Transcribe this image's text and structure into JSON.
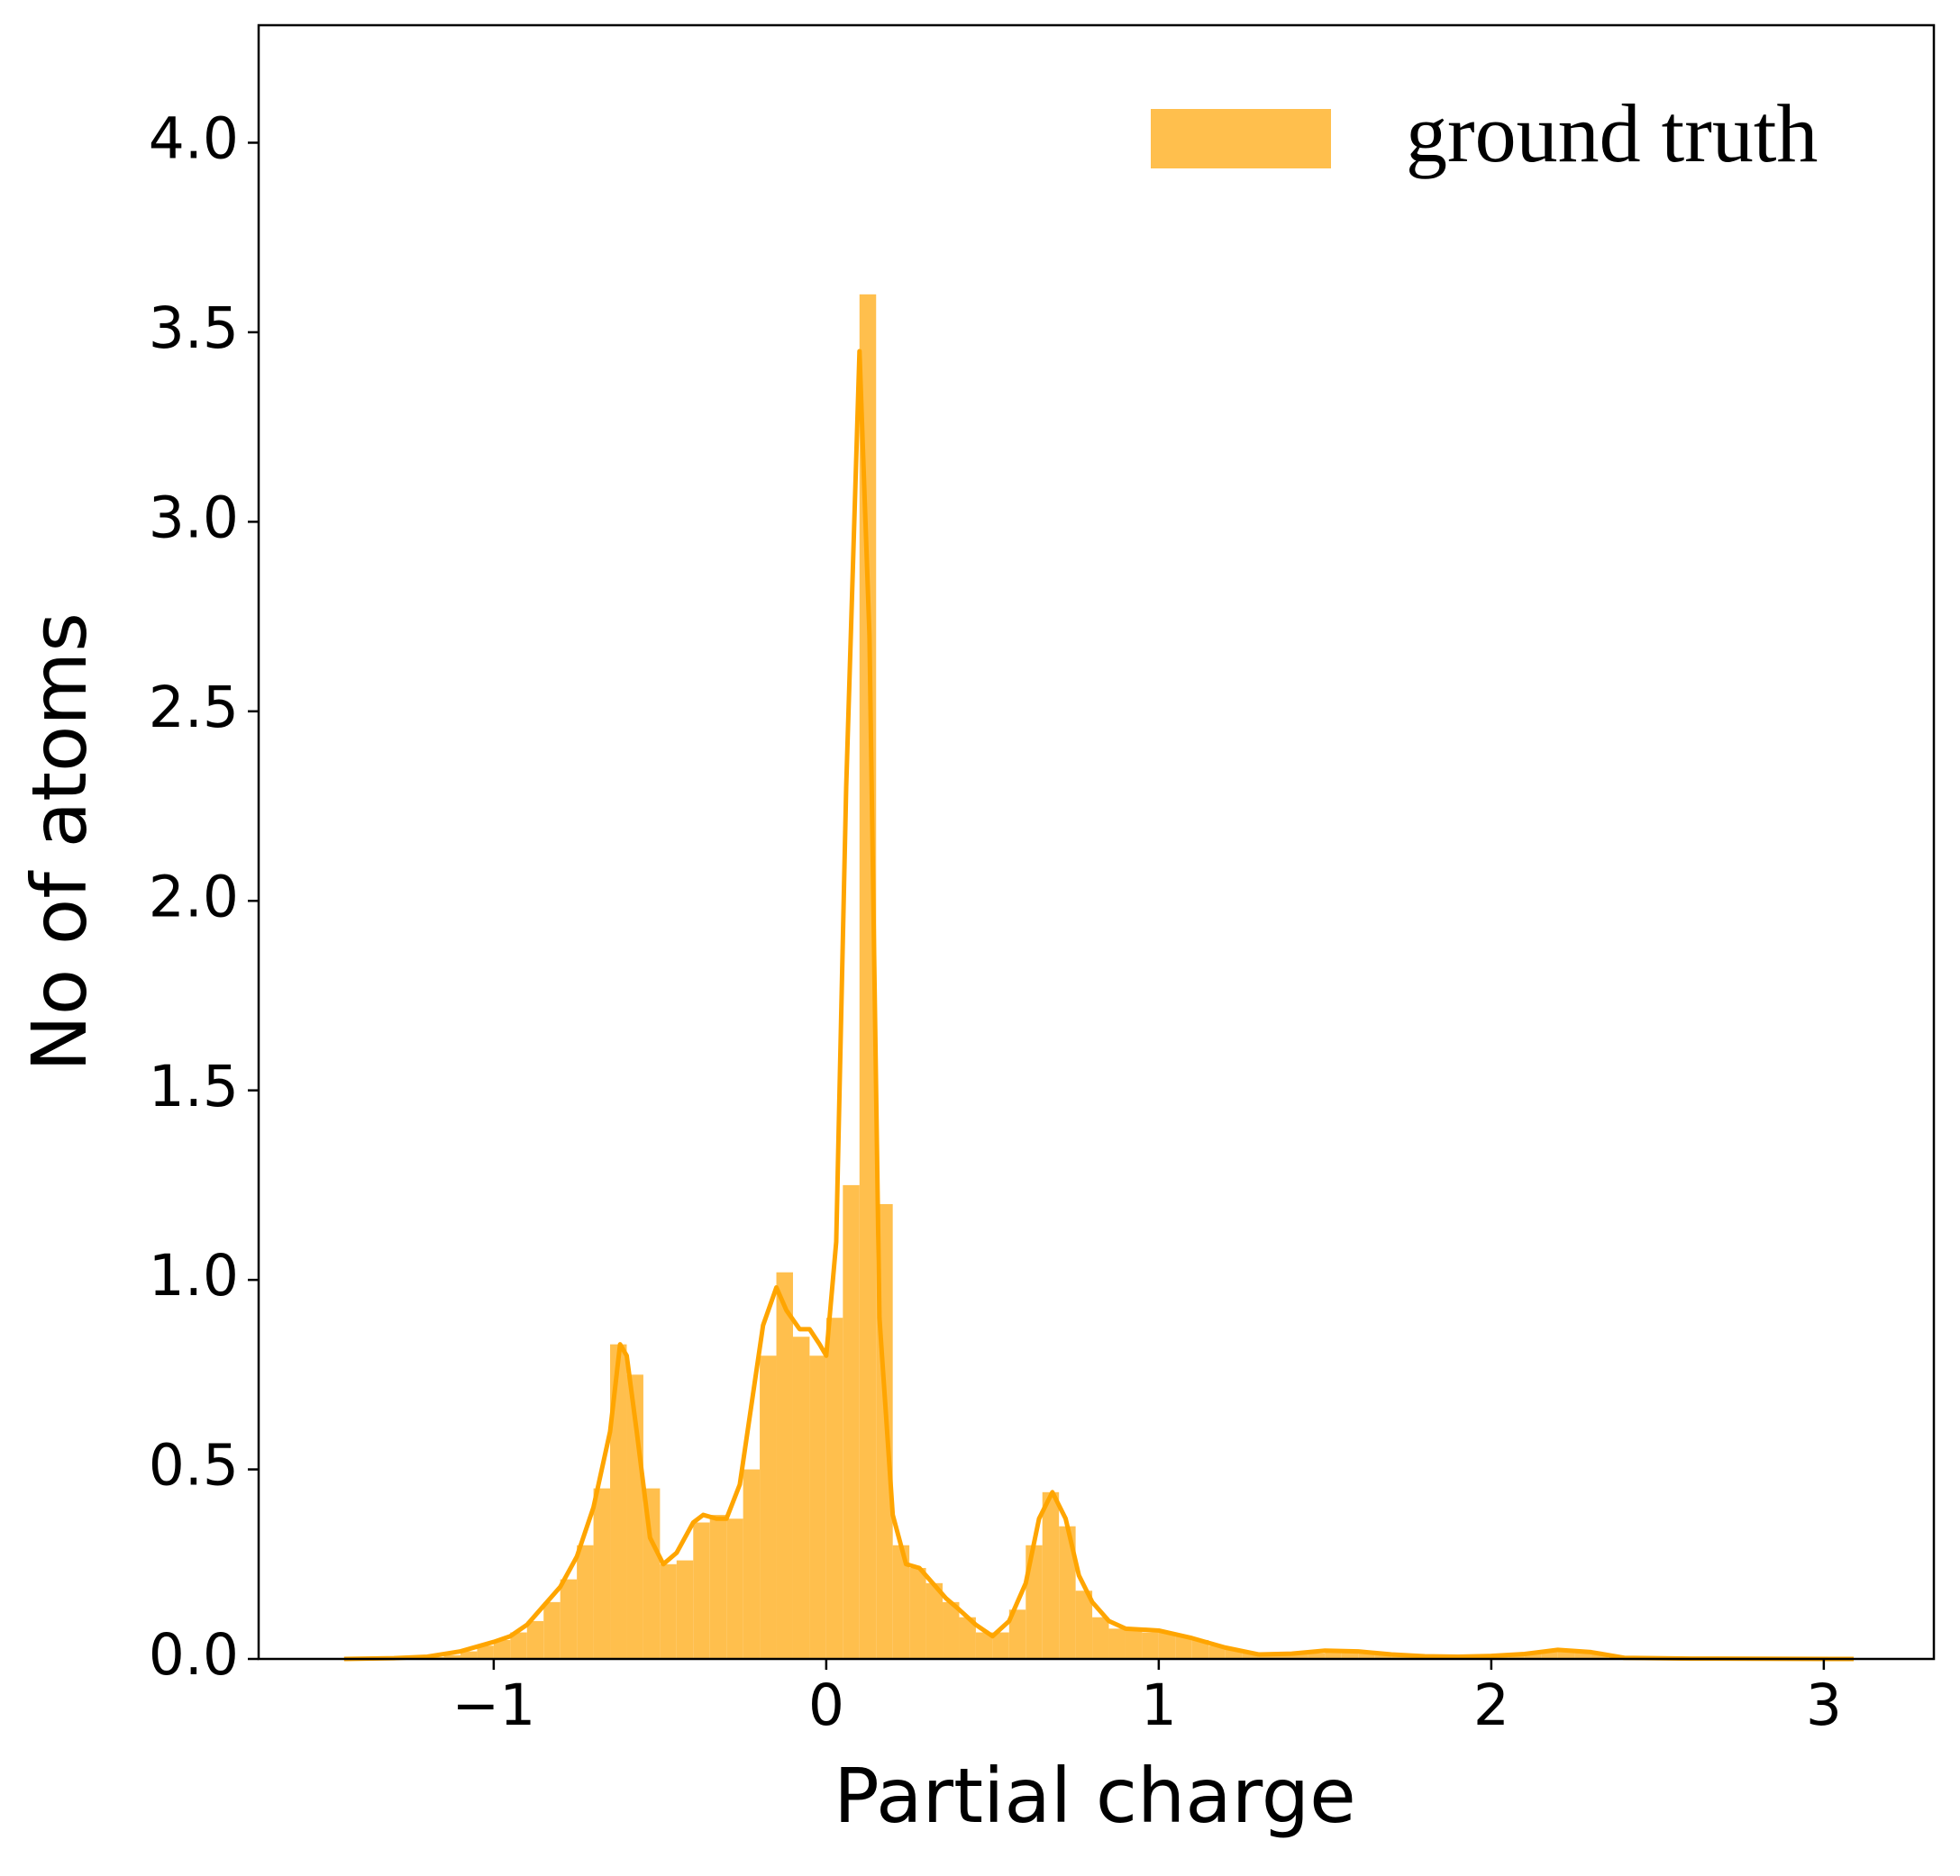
{
  "chart_data": {
    "type": "histogram",
    "xlabel": "Partial charge",
    "ylabel": "No of atoms",
    "bins": [
      -1.45,
      -1.4,
      -1.35,
      -1.3,
      -1.25,
      -1.2,
      -1.15,
      -1.1,
      -1.05,
      -1,
      -0.95,
      -0.9,
      -0.85,
      -0.8,
      -0.75,
      -0.7,
      -0.65,
      -0.6,
      -0.55,
      -0.5,
      -0.45,
      -0.4,
      -0.35,
      -0.3,
      -0.25,
      -0.2,
      -0.15,
      -0.1,
      -0.05,
      0,
      0.05,
      0.1,
      0.15,
      0.2,
      0.25,
      0.3,
      0.35,
      0.4,
      0.45,
      0.5,
      0.55,
      0.6,
      0.65,
      0.7,
      0.75,
      0.8,
      0.85,
      0.9,
      0.95,
      1,
      1.05,
      1.1,
      1.15,
      1.2,
      1.25,
      1.3,
      1.35,
      1.4,
      1.45,
      1.5,
      1.55,
      1.6,
      1.65,
      1.7,
      1.75,
      1.8,
      1.85,
      1.9,
      1.95,
      2,
      2.05,
      2.1,
      2.15,
      2.2,
      2.25,
      2.3,
      2.35,
      2.4,
      2.45,
      2.5,
      2.55,
      2.6,
      2.65,
      2.7,
      2.75,
      2.8,
      2.85,
      2.9,
      2.95,
      3,
      3.05,
      3.1
    ],
    "series": [
      {
        "name": "ground truth",
        "color": "#ffbf4d",
        "values": [
          0,
          0,
          0,
          0.002,
          0.002,
          0.005,
          0.01,
          0.02,
          0.035,
          0.05,
          0.07,
          0.1,
          0.15,
          0.21,
          0.3,
          0.45,
          0.83,
          0.75,
          0.45,
          0.25,
          0.26,
          0.36,
          0.38,
          0.37,
          0.5,
          0.8,
          1.02,
          0.85,
          0.8,
          0.9,
          1.25,
          3.6,
          1.2,
          0.3,
          0.24,
          0.2,
          0.15,
          0.11,
          0.07,
          0.07,
          0.13,
          0.3,
          0.44,
          0.35,
          0.18,
          0.11,
          0.08,
          0.075,
          0.07,
          0.07,
          0.06,
          0.05,
          0.035,
          0.025,
          0.015,
          0.01,
          0.01,
          0.012,
          0.015,
          0.02,
          0.02,
          0.018,
          0.012,
          0.01,
          0.008,
          0.005,
          0.005,
          0.005,
          0.006,
          0.008,
          0.01,
          0.015,
          0.022,
          0.025,
          0.02,
          0.012,
          0.004,
          0,
          0,
          0,
          0,
          0,
          0,
          0,
          0,
          0,
          0,
          0,
          0,
          0,
          0
        ]
      }
    ],
    "kde": {
      "color": "#ffa500",
      "x": [
        -1.45,
        -1.3,
        -1.2,
        -1.1,
        -1,
        -0.95,
        -0.9,
        -0.85,
        -0.8,
        -0.75,
        -0.7,
        -0.65,
        -0.62,
        -0.6,
        -0.57,
        -0.53,
        -0.49,
        -0.45,
        -0.4,
        -0.37,
        -0.33,
        -0.3,
        -0.26,
        -0.22,
        -0.19,
        -0.15,
        -0.12,
        -0.08,
        -0.05,
        -0.02,
        0,
        0.03,
        0.06,
        0.1,
        0.13,
        0.16,
        0.2,
        0.24,
        0.28,
        0.32,
        0.36,
        0.4,
        0.45,
        0.5,
        0.55,
        0.6,
        0.64,
        0.68,
        0.72,
        0.76,
        0.8,
        0.85,
        0.9,
        1,
        1.1,
        1.2,
        1.3,
        1.4,
        1.5,
        1.6,
        1.7,
        1.8,
        1.9,
        2,
        2.1,
        2.2,
        2.3,
        2.4,
        2.6,
        3.09
      ],
      "values": [
        0,
        0.002,
        0.006,
        0.02,
        0.045,
        0.06,
        0.09,
        0.14,
        0.19,
        0.27,
        0.4,
        0.6,
        0.83,
        0.8,
        0.6,
        0.32,
        0.25,
        0.28,
        0.36,
        0.38,
        0.37,
        0.37,
        0.46,
        0.7,
        0.88,
        0.98,
        0.92,
        0.87,
        0.87,
        0.83,
        0.8,
        1.1,
        2.3,
        3.45,
        2.7,
        0.9,
        0.38,
        0.25,
        0.24,
        0.2,
        0.16,
        0.13,
        0.09,
        0.06,
        0.1,
        0.2,
        0.37,
        0.44,
        0.37,
        0.22,
        0.15,
        0.1,
        0.08,
        0.075,
        0.055,
        0.03,
        0.012,
        0.014,
        0.022,
        0.02,
        0.012,
        0.007,
        0.006,
        0.008,
        0.013,
        0.024,
        0.018,
        0.003,
        0.001,
        0
      ]
    },
    "xlim": [
      -1.707,
      3.331
    ],
    "ylim": [
      0,
      4.31
    ],
    "xticks": [
      {
        "value": -1,
        "label": "−1"
      },
      0,
      1,
      2,
      3
    ],
    "yticks": [
      {
        "value": 0,
        "label": "0.0"
      },
      0.5,
      {
        "value": 1,
        "label": "1.0"
      },
      1.5,
      {
        "value": 2,
        "label": "2.0"
      },
      2.5,
      {
        "value": 3,
        "label": "3.0"
      },
      3.5,
      {
        "value": 4,
        "label": "4.0"
      }
    ],
    "legend": "upper right",
    "grid": false
  }
}
